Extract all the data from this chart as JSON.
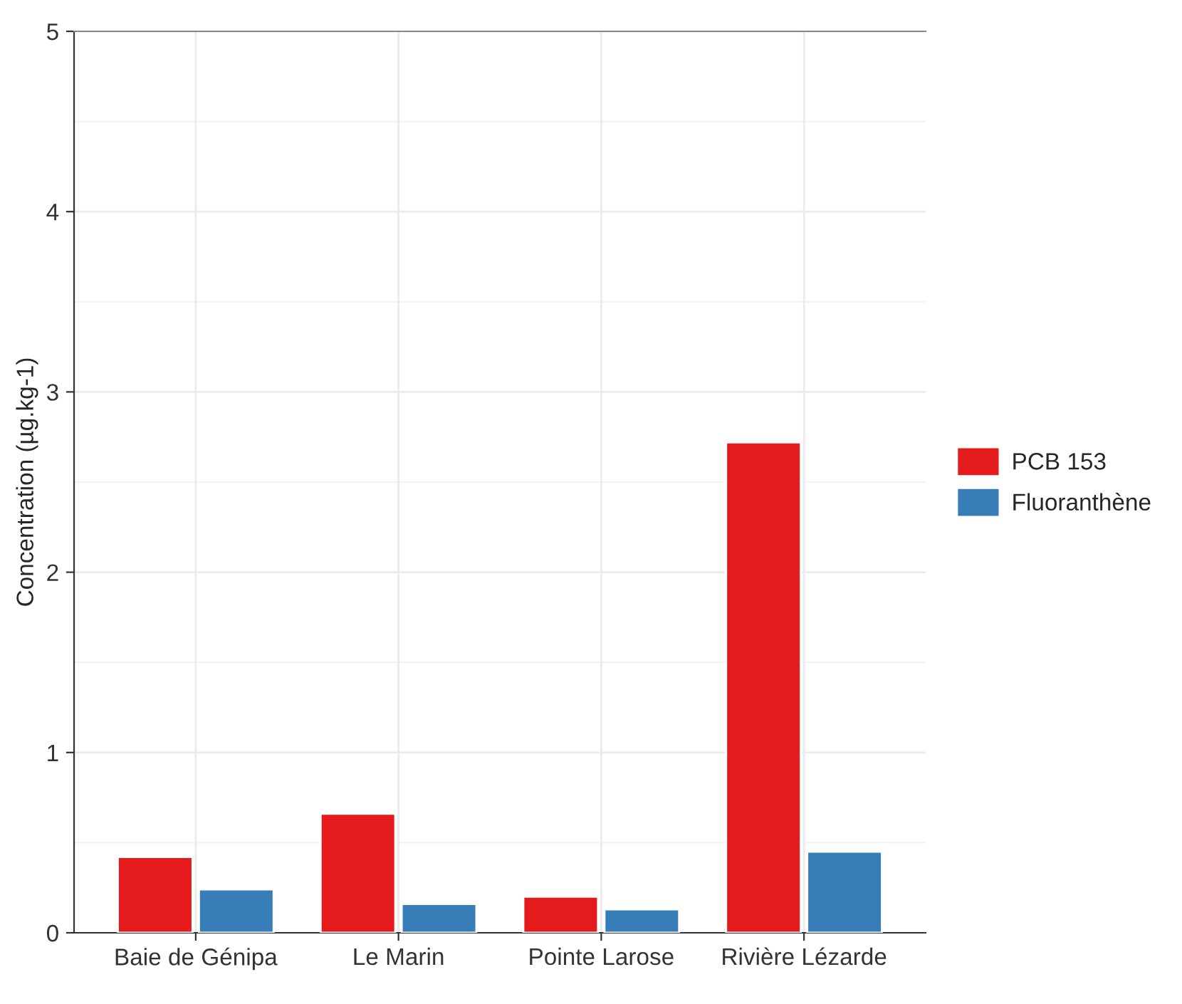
{
  "chart_data": {
    "type": "bar",
    "ylabel": "Concentration (µg.kg-1)",
    "categories": [
      "Baie de Génipa",
      "Le Marin",
      "Pointe Larose",
      "Rivière Lézarde"
    ],
    "series": [
      {
        "name": "PCB 153",
        "color": "#e41a1c",
        "values": [
          0.42,
          0.66,
          0.2,
          2.72
        ]
      },
      {
        "name": "Fluoranthène",
        "color": "#377eb8",
        "values": [
          0.24,
          0.16,
          0.13,
          0.45
        ]
      }
    ],
    "ylim": [
      0,
      5
    ],
    "yticks": [
      0,
      1,
      2,
      3,
      4,
      5
    ],
    "grid": true,
    "legend": "right"
  }
}
